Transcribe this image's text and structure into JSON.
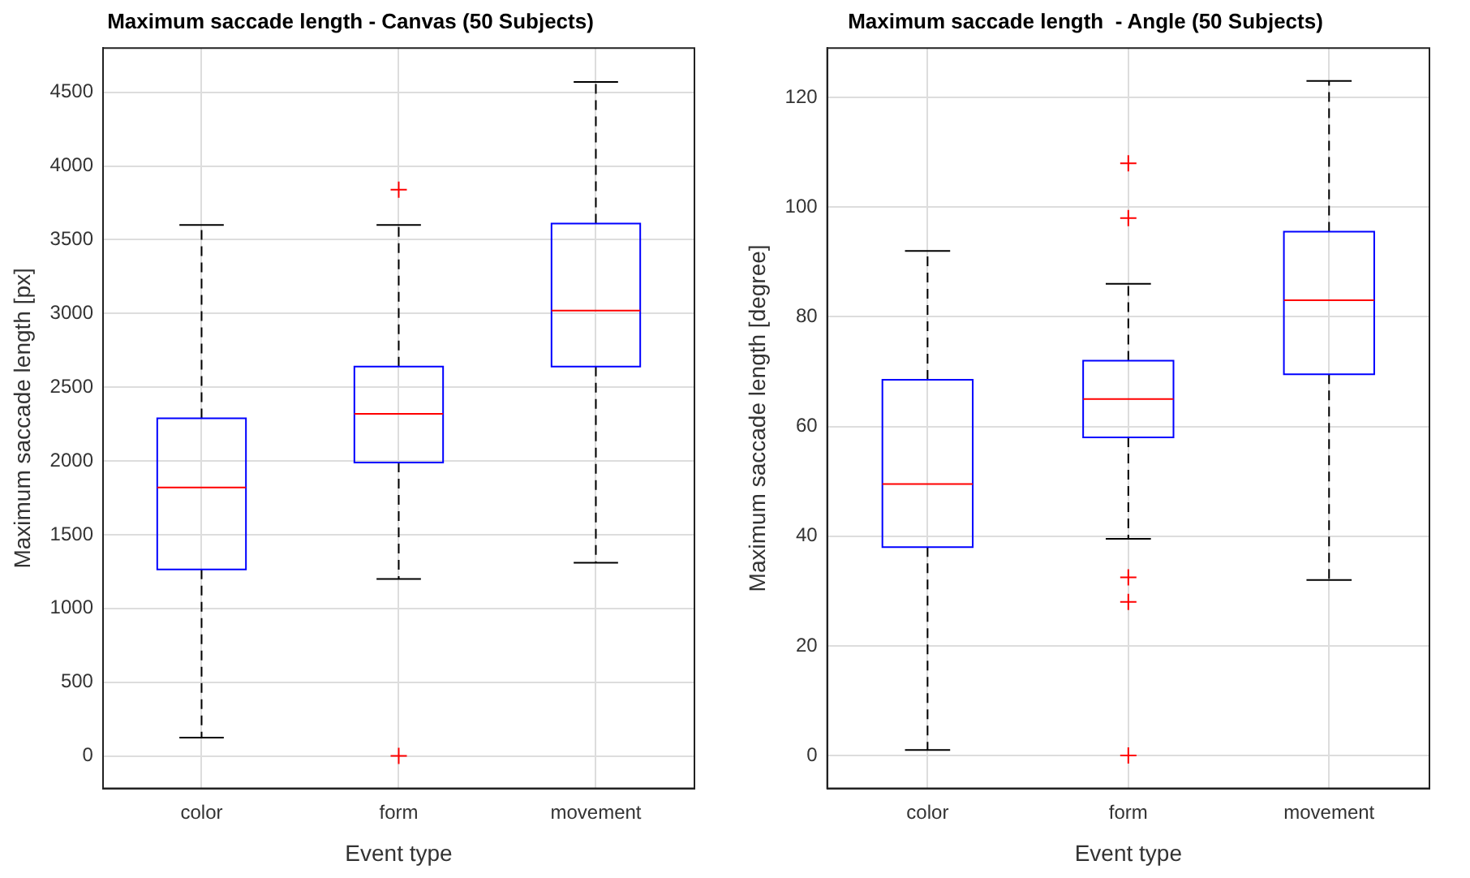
{
  "chart_data": [
    {
      "type": "box",
      "title": "Maximum saccade length - Canvas (50 Subjects)",
      "xlabel": "Event type",
      "ylabel": "Maximum saccade length [px]",
      "categories": [
        "color",
        "form",
        "movement"
      ],
      "boxes": [
        {
          "low": 125,
          "q1": 1265,
          "median": 1820,
          "q3": 2290,
          "high": 3600
        },
        {
          "low": 1200,
          "q1": 1990,
          "median": 2320,
          "q3": 2640,
          "high": 3600,
          "outliers": [
            3840,
            0
          ]
        },
        {
          "low": 1310,
          "q1": 2640,
          "median": 3020,
          "q3": 3610,
          "high": 4570
        }
      ],
      "ylim": [
        -220,
        4800
      ],
      "yticks": [
        0,
        500,
        1000,
        1500,
        2000,
        2500,
        3000,
        3500,
        4000,
        4500
      ],
      "grid": true
    },
    {
      "type": "box",
      "title": "Maximum saccade length  - Angle (50 Subjects)",
      "xlabel": "Event type",
      "ylabel": "Maximum saccade length [degree]",
      "categories": [
        "color",
        "form",
        "movement"
      ],
      "boxes": [
        {
          "low": 1,
          "q1": 38,
          "median": 49.5,
          "q3": 68.5,
          "high": 92
        },
        {
          "low": 39.5,
          "q1": 58,
          "median": 65,
          "q3": 72,
          "high": 86,
          "outliers": [
            108,
            98,
            32.5,
            28,
            0
          ]
        },
        {
          "low": 32,
          "q1": 69.5,
          "median": 83,
          "q3": 95.5,
          "high": 123
        }
      ],
      "ylim": [
        -6,
        129
      ],
      "yticks": [
        0,
        20,
        40,
        60,
        80,
        100,
        120
      ],
      "grid": true
    }
  ]
}
